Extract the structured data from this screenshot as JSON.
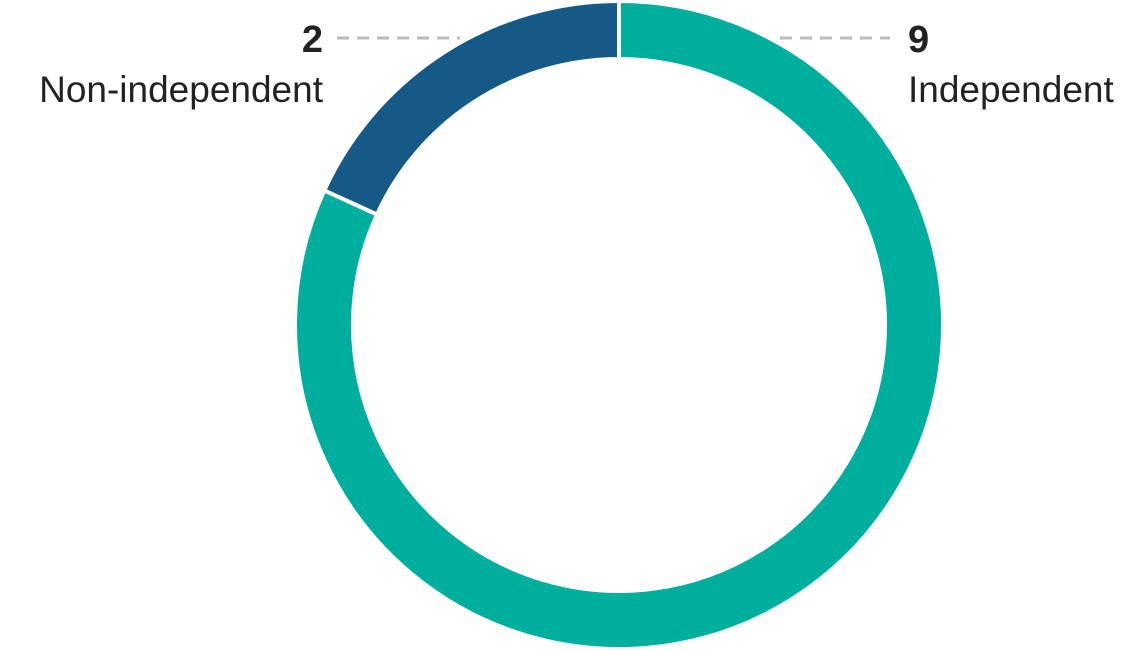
{
  "chart_data": {
    "type": "donut",
    "categories": [
      "Independent",
      "Non-independent"
    ],
    "values": [
      9,
      2
    ],
    "colors": [
      "#00ae9e",
      "#155a87"
    ]
  }
}
